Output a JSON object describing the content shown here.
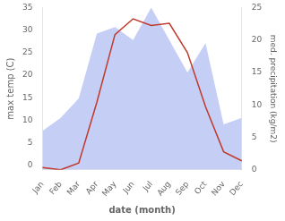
{
  "chart_data": {
    "type": "line",
    "xlabel": "date (month)",
    "ylabel": "max temp (C)",
    "y2label": "med. precipitation (kg/m2)",
    "categories": [
      "Jan",
      "Feb",
      "Mar",
      "Apr",
      "May",
      "Jun",
      "Jul",
      "Aug",
      "Sep",
      "Oct",
      "Nov",
      "Dec"
    ],
    "series": [
      {
        "type": "area",
        "color": "#c5cef5",
        "axis": "y2",
        "values": [
          6.0,
          8.0,
          11.0,
          21.0,
          22.0,
          20.0,
          25.0,
          20.0,
          15.0,
          19.5,
          7.0,
          8.0
        ]
      },
      {
        "type": "line",
        "color": "#c0392b",
        "values": [
          -0.5,
          -1.0,
          0.5,
          14.0,
          29.0,
          32.5,
          31.0,
          31.5,
          25.0,
          13.0,
          3.0,
          1.0
        ]
      }
    ],
    "ylim": [
      -1,
      35
    ],
    "yticks": [
      0,
      5,
      10,
      15,
      20,
      25,
      30,
      35
    ],
    "y2lim": [
      0,
      25
    ],
    "y2ticks": [
      0,
      5,
      10,
      15,
      20,
      25
    ],
    "grid": false
  }
}
